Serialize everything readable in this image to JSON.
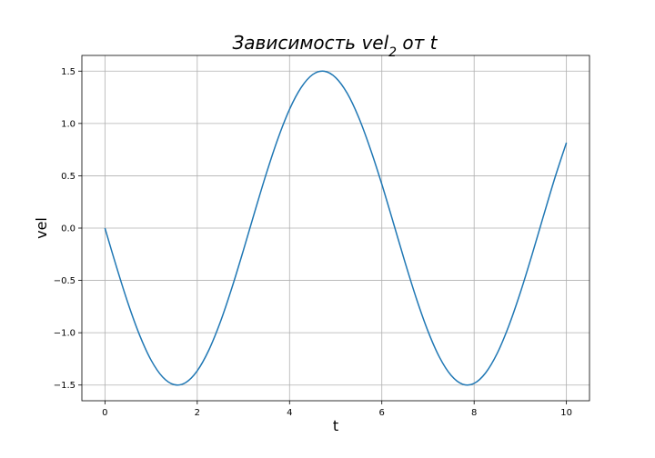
{
  "chart_data": {
    "type": "line",
    "title": {
      "prefix": "Зависимость vel",
      "subscript": "2",
      "suffix": " от t"
    },
    "xlabel": "t",
    "ylabel": "vel",
    "xlim": [
      -0.5,
      10.5
    ],
    "ylim": [
      -1.65,
      1.65
    ],
    "grid": true,
    "x_ticks": [
      {
        "value": 0,
        "label": "0"
      },
      {
        "value": 2,
        "label": "2"
      },
      {
        "value": 4,
        "label": "4"
      },
      {
        "value": 6,
        "label": "6"
      },
      {
        "value": 8,
        "label": "8"
      },
      {
        "value": 10,
        "label": "10"
      }
    ],
    "y_ticks": [
      {
        "value": 1.5,
        "label": "1.5"
      },
      {
        "value": 1.0,
        "label": "1.0"
      },
      {
        "value": 0.5,
        "label": "0.5"
      },
      {
        "value": 0.0,
        "label": "0.0"
      },
      {
        "value": -0.5,
        "label": "−0.5"
      },
      {
        "value": -1.0,
        "label": "−1.0"
      },
      {
        "value": -1.5,
        "label": "−1.5"
      }
    ],
    "series": [
      {
        "color": "#1f77b4",
        "x": [
          0,
          0.25,
          0.5,
          0.75,
          1.0,
          1.25,
          1.5,
          1.75,
          2.0,
          2.25,
          2.5,
          2.75,
          3.0,
          3.25,
          3.5,
          3.75,
          4.0,
          4.25,
          4.5,
          4.75,
          5.0,
          5.25,
          5.5,
          5.75,
          6.0,
          6.25,
          6.5,
          6.75,
          7.0,
          7.25,
          7.5,
          7.75,
          8.0,
          8.25,
          8.5,
          8.75,
          9.0,
          9.25,
          9.5,
          9.75,
          10.0
        ],
        "y": [
          0.0,
          -0.371,
          -0.719,
          -1.022,
          -1.262,
          -1.423,
          -1.496,
          -1.476,
          -1.364,
          -1.167,
          -0.898,
          -0.572,
          -0.212,
          0.162,
          0.526,
          0.857,
          1.135,
          1.342,
          1.467,
          1.499,
          1.438,
          1.288,
          1.056,
          0.758,
          0.419,
          0.05,
          -0.323,
          -0.675,
          -0.985,
          -1.235,
          -1.407,
          -1.492,
          -1.484,
          -1.383,
          -1.197,
          -0.936,
          -0.618,
          -0.262,
          0.112,
          0.48,
          0.816
        ]
      }
    ]
  }
}
